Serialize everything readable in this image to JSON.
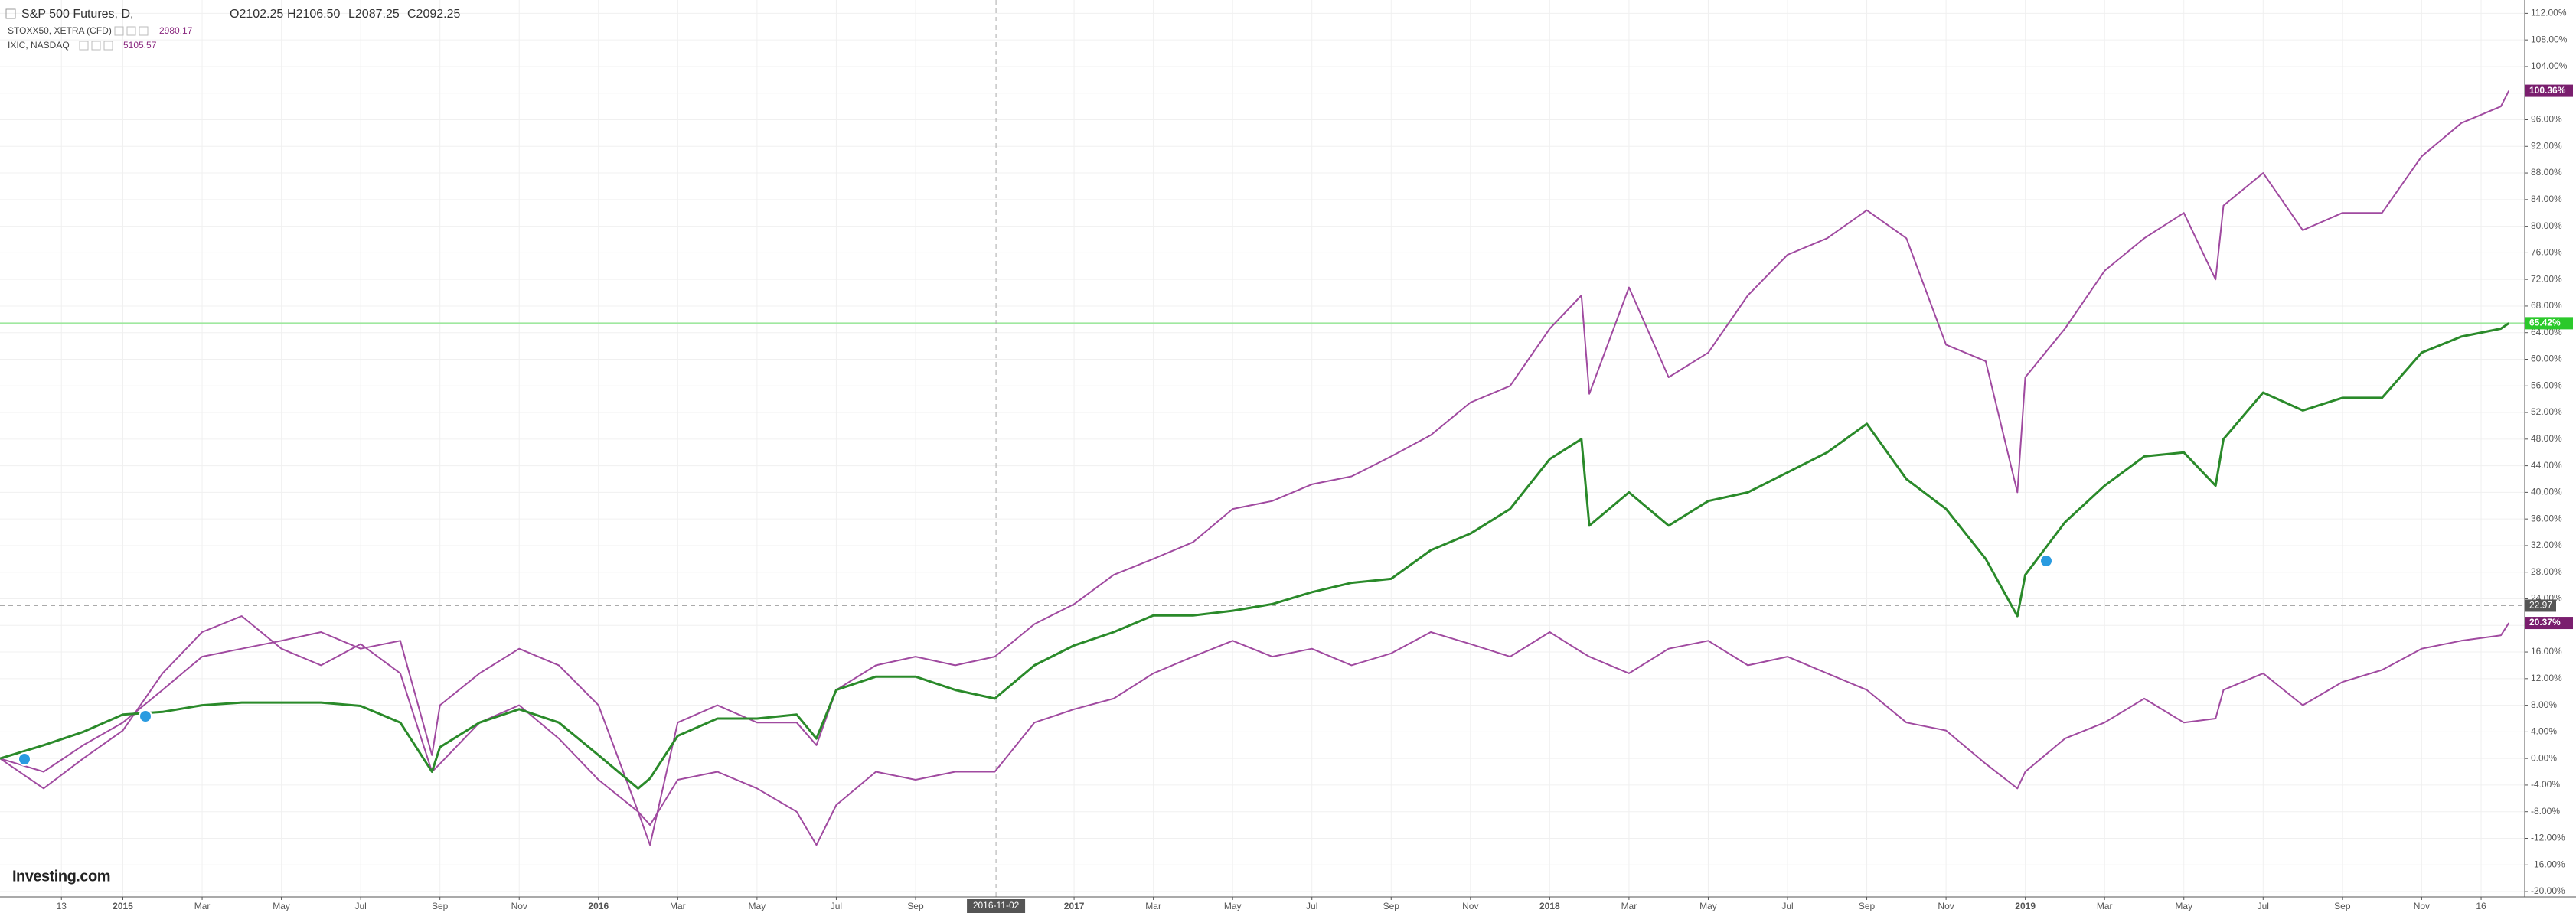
{
  "chart_data": {
    "type": "line",
    "logo": "Investing.com",
    "ohlc": [
      {
        "value": 2102.25,
        "label": "O2102.25"
      },
      {
        "value": 2106.5,
        "label": "H2106.50"
      },
      {
        "value": 2087.25,
        "label": "L2087.25"
      },
      {
        "value": 2092.25,
        "label": "C2092.25"
      }
    ],
    "x": [
      -3.1,
      -2,
      -1,
      0,
      1,
      2,
      3,
      4,
      5,
      6,
      7,
      7.8,
      8,
      9,
      10,
      11,
      12,
      13,
      13.3,
      14,
      15,
      16,
      17,
      17.5,
      18,
      19,
      20,
      21,
      22,
      23,
      24,
      25,
      26,
      27,
      28,
      29,
      30,
      31,
      32,
      33,
      34,
      35,
      36,
      36.8,
      37,
      38,
      39,
      40,
      41,
      42,
      43,
      44,
      45,
      46,
      47,
      47.8,
      48,
      49,
      50,
      51,
      52,
      52.8,
      53,
      54,
      55,
      56,
      57,
      58,
      59,
      60,
      60.2
    ],
    "series": [
      {
        "name": "S&P 500 Futures, D,",
        "color": "#2a8a2a",
        "tag_color": "#2bc92b",
        "values": [
          0,
          2,
          4,
          6.6,
          7,
          8,
          8.4,
          8.4,
          8.4,
          7.9,
          5.4,
          -2,
          1.7,
          5.4,
          7.4,
          5.4,
          0.5,
          -4.5,
          -3,
          3.4,
          6,
          6,
          6.6,
          3,
          10.3,
          12.3,
          12.3,
          10.3,
          9,
          14,
          17,
          19,
          21.5,
          21.5,
          22.2,
          23.2,
          25,
          26.4,
          27,
          31.3,
          33.8,
          37.5,
          45,
          48,
          35,
          40,
          35,
          38.7,
          40,
          43,
          46,
          50.3,
          42,
          37.5,
          30,
          21.4,
          27.6,
          35.5,
          41,
          45.4,
          46,
          41,
          48,
          55,
          52.3,
          54.2,
          54.2,
          61,
          63.4,
          64.6,
          65.42
        ],
        "value_labels": [
          null,
          null,
          null,
          null,
          null,
          null,
          null,
          null,
          null,
          null,
          null,
          null,
          null,
          null,
          null,
          null,
          null,
          null,
          null,
          null,
          null,
          null,
          null,
          null,
          null,
          null,
          null,
          null,
          null,
          null,
          null,
          null,
          null,
          null,
          null,
          null,
          null,
          null,
          null,
          null,
          null,
          null,
          null,
          null,
          null,
          null,
          null,
          null,
          null,
          null,
          null,
          null,
          null,
          null,
          null,
          null,
          null,
          null,
          null,
          null,
          null,
          null,
          null,
          null,
          null,
          null,
          null,
          null,
          null,
          null,
          "65.42%"
        ]
      },
      {
        "name": "STOXX50, XETRA (CFD)",
        "quote": 2980.17,
        "color": "#a04aa0",
        "tag_color": "#7a1e6e",
        "values": [
          0,
          -4.5,
          0,
          4.2,
          12.8,
          19,
          21.4,
          16.5,
          14,
          17.2,
          12.8,
          -2,
          -0.8,
          5.4,
          8,
          3,
          -3.2,
          -8,
          -10,
          -3.2,
          -2,
          -4.5,
          -8,
          -13,
          -7,
          -2,
          -3.2,
          -2,
          -2,
          5.4,
          7.4,
          9,
          12.8,
          15.3,
          17.7,
          15.3,
          16.5,
          14,
          15.8,
          19,
          17.2,
          15.3,
          19,
          16,
          15.3,
          12.8,
          16.5,
          17.7,
          14,
          15.3,
          12.8,
          10.3,
          5.4,
          4.2,
          -0.8,
          -4.5,
          -2,
          3,
          5.4,
          9,
          5.4,
          6,
          10.3,
          12.8,
          8,
          11.5,
          13.3,
          16.5,
          17.7,
          18.5,
          20.37
        ],
        "value_labels": [
          null,
          null,
          null,
          null,
          null,
          null,
          null,
          null,
          null,
          null,
          null,
          null,
          null,
          null,
          null,
          null,
          null,
          null,
          null,
          null,
          null,
          null,
          null,
          null,
          null,
          null,
          null,
          null,
          null,
          null,
          null,
          null,
          null,
          null,
          null,
          null,
          null,
          null,
          null,
          null,
          null,
          null,
          null,
          null,
          null,
          null,
          null,
          null,
          null,
          null,
          null,
          null,
          null,
          null,
          null,
          null,
          null,
          null,
          null,
          null,
          null,
          null,
          null,
          null,
          null,
          null,
          null,
          null,
          null,
          null,
          "20.37%"
        ]
      },
      {
        "name": "IXIC, NASDAQ",
        "quote": 5105.57,
        "color": "#a04aa0",
        "tag_color": "#7a1e6e",
        "values": [
          0,
          -2,
          2,
          5.4,
          10.3,
          15.3,
          16.5,
          17.7,
          19,
          16.5,
          17.7,
          0.5,
          8,
          12.8,
          16.5,
          14,
          8,
          -8,
          -13,
          5.4,
          8,
          5.4,
          5.4,
          2,
          10.3,
          14,
          15.3,
          14,
          15.3,
          20.2,
          23.2,
          27.6,
          30,
          32.5,
          37.5,
          38.7,
          41.2,
          42.4,
          45.4,
          48.6,
          53.5,
          56,
          64.6,
          69.6,
          54.8,
          70.8,
          57.3,
          61,
          69.6,
          75.7,
          78.2,
          82.4,
          78.2,
          62.2,
          59.7,
          40,
          57.3,
          64.6,
          73.3,
          78.2,
          82,
          72,
          83.1,
          88,
          79.4,
          82,
          82,
          90.5,
          95.5,
          98,
          100.36
        ],
        "value_labels": [
          null,
          null,
          null,
          null,
          null,
          null,
          null,
          null,
          null,
          null,
          null,
          null,
          null,
          null,
          null,
          null,
          null,
          null,
          null,
          null,
          null,
          null,
          null,
          null,
          null,
          null,
          null,
          null,
          null,
          null,
          null,
          null,
          null,
          null,
          null,
          null,
          null,
          null,
          null,
          null,
          null,
          null,
          null,
          null,
          null,
          null,
          null,
          null,
          null,
          null,
          null,
          null,
          null,
          null,
          null,
          null,
          null,
          null,
          null,
          null,
          null,
          null,
          null,
          null,
          null,
          null,
          null,
          null,
          null,
          null,
          "100.36%"
        ]
      }
    ],
    "xlim": [
      -3.1,
      60.6
    ],
    "ylim": [
      -20.8,
      114
    ],
    "xticks": [
      {
        "value": -1.55,
        "label": "13"
      },
      {
        "value": 0,
        "label": "2015"
      },
      {
        "value": 2,
        "label": "Mar"
      },
      {
        "value": 4,
        "label": "May"
      },
      {
        "value": 6,
        "label": "Jul"
      },
      {
        "value": 8,
        "label": "Sep"
      },
      {
        "value": 10,
        "label": "Nov"
      },
      {
        "value": 12,
        "label": "2016"
      },
      {
        "value": 14,
        "label": "Mar"
      },
      {
        "value": 16,
        "label": "May"
      },
      {
        "value": 18,
        "label": "Jul"
      },
      {
        "value": 20,
        "label": "Sep"
      },
      {
        "value": 24,
        "label": "2017"
      },
      {
        "value": 26,
        "label": "Mar"
      },
      {
        "value": 28,
        "label": "May"
      },
      {
        "value": 30,
        "label": "Jul"
      },
      {
        "value": 32,
        "label": "Sep"
      },
      {
        "value": 34,
        "label": "Nov"
      },
      {
        "value": 36,
        "label": "2018"
      },
      {
        "value": 38,
        "label": "Mar"
      },
      {
        "value": 40,
        "label": "May"
      },
      {
        "value": 42,
        "label": "Jul"
      },
      {
        "value": 44,
        "label": "Sep"
      },
      {
        "value": 46,
        "label": "Nov"
      },
      {
        "value": 48,
        "label": "2019"
      },
      {
        "value": 50,
        "label": "Mar"
      },
      {
        "value": 52,
        "label": "May"
      },
      {
        "value": 54,
        "label": "Jul"
      },
      {
        "value": 56,
        "label": "Sep"
      },
      {
        "value": 58,
        "label": "Nov"
      },
      {
        "value": 59.5,
        "label": "16"
      }
    ],
    "yticks": [
      {
        "value": -20,
        "label": "-20.00%"
      },
      {
        "value": -16,
        "label": "-16.00%"
      },
      {
        "value": -12,
        "label": "-12.00%"
      },
      {
        "value": -8,
        "label": "-8.00%"
      },
      {
        "value": -4,
        "label": "-4.00%"
      },
      {
        "value": 0,
        "label": "0.00%"
      },
      {
        "value": 4,
        "label": "4.00%"
      },
      {
        "value": 8,
        "label": "8.00%"
      },
      {
        "value": 12,
        "label": "12.00%"
      },
      {
        "value": 16,
        "label": "16.00%"
      },
      {
        "value": 20,
        "label": "20.00%"
      },
      {
        "value": 24,
        "label": "24.00%"
      },
      {
        "value": 28,
        "label": "28.00%"
      },
      {
        "value": 32,
        "label": "32.00%"
      },
      {
        "value": 36,
        "label": "36.00%"
      },
      {
        "value": 40,
        "label": "40.00%"
      },
      {
        "value": 44,
        "label": "44.00%"
      },
      {
        "value": 48,
        "label": "48.00%"
      },
      {
        "value": 52,
        "label": "52.00%"
      },
      {
        "value": 56,
        "label": "56.00%"
      },
      {
        "value": 60,
        "label": "60.00%"
      },
      {
        "value": 64,
        "label": "64.00%"
      },
      {
        "value": 68,
        "label": "68.00%"
      },
      {
        "value": 72,
        "label": "72.00%"
      },
      {
        "value": 76,
        "label": "76.00%"
      },
      {
        "value": 80,
        "label": "80.00%"
      },
      {
        "value": 84,
        "label": "84.00%"
      },
      {
        "value": 88,
        "label": "88.00%"
      },
      {
        "value": 92,
        "label": "92.00%"
      },
      {
        "value": 96,
        "label": "96.00%"
      },
      {
        "value": 100,
        "label": "100.00%"
      },
      {
        "value": 104,
        "label": "104.00%"
      },
      {
        "value": 108,
        "label": "108.00%"
      },
      {
        "value": 112,
        "label": "112.00%"
      }
    ],
    "grid": true,
    "crosshair": {
      "x": {
        "value": 22.03,
        "label": "2016-11-02"
      },
      "y": 22.97
    }
  }
}
